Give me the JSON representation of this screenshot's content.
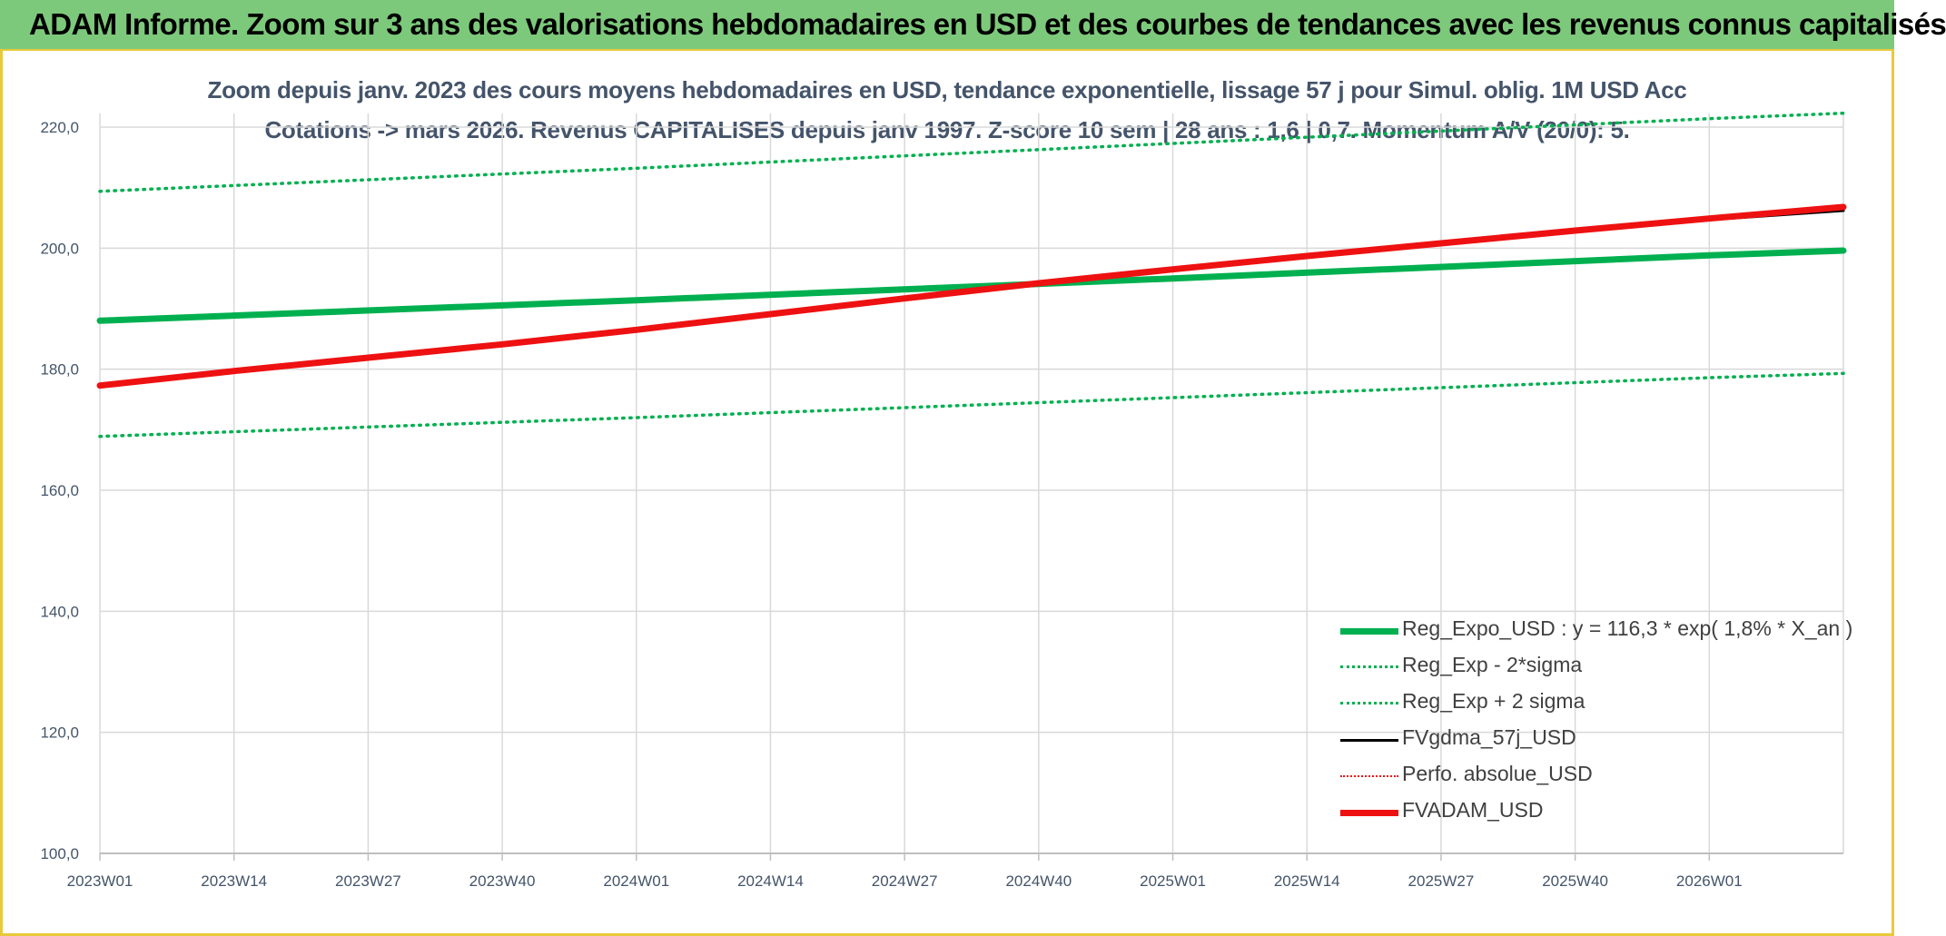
{
  "banner": {
    "title": "ADAM Informe. Zoom sur 3 ans des valorisations hebdomadaires en USD et des courbes de tendances avec les revenus connus capitalisés"
  },
  "colors": {
    "banner_bg": "#7dc97b",
    "frame_accent": "#e8c93a",
    "reg_expo": "#00b050",
    "fvgdma": "#000000",
    "fvadam": "#ee1111",
    "perfo": "#ee1111",
    "text": "#44546a"
  },
  "chart_data": {
    "type": "line",
    "title": "Zoom depuis janv. 2023 des cours moyens hebdomadaires en USD, tendance exponentielle, lissage 57 j pour Simul. oblig. 1M USD Acc",
    "subtitle": "Cotations -> mars 2026. Revenus CAPITALISES depuis janv 1997. Z-score 10 sem | 28 ans : 1,6 | 0,7. Momentum A/V (20/0): 5.",
    "xlabel": "",
    "ylabel": "",
    "ylim": [
      100,
      220
    ],
    "yticks": [
      "100,0",
      "120,0",
      "140,0",
      "160,0",
      "180,0",
      "200,0",
      "220,0"
    ],
    "grid": true,
    "legend_position": "bottom-right",
    "x_tick_labels": [
      "2023W01",
      "2023W14",
      "2023W27",
      "2023W40",
      "2024W01",
      "2024W14",
      "2024W27",
      "2024W40",
      "2025W01",
      "2025W14",
      "2025W27",
      "2025W40",
      "2026W01"
    ],
    "x_tick_weeks": [
      0,
      13,
      26,
      39,
      52,
      65,
      78,
      91,
      104,
      117,
      130,
      143,
      156
    ],
    "x_range_weeks": [
      0,
      169
    ],
    "series": [
      {
        "key": "reg",
        "name": "Reg_Expo_USD : y = 116,3 * exp( 1,8% *  X_an )",
        "style": "thick-solid",
        "color": "#00b050",
        "x": [
          0,
          52,
          104,
          156,
          169
        ],
        "values": [
          188.0,
          191.4,
          195.0,
          198.8,
          199.6
        ]
      },
      {
        "key": "lo",
        "name": "Reg_Exp - 2*sigma",
        "style": "dotted",
        "color": "#00b050",
        "x": [
          0,
          52,
          104,
          156,
          169
        ],
        "values": [
          168.9,
          172.0,
          175.3,
          178.6,
          179.3
        ]
      },
      {
        "key": "hi",
        "name": "Reg_Exp + 2 sigma",
        "style": "dotted",
        "color": "#00b050",
        "x": [
          0,
          52,
          104,
          156,
          169
        ],
        "values": [
          209.4,
          213.2,
          217.3,
          221.4,
          222.3
        ]
      },
      {
        "key": "fvgdma",
        "name": "FVgdma_57j_USD",
        "style": "solid",
        "color": "#000000",
        "x": [
          0,
          13,
          26,
          39,
          52,
          65,
          78,
          91,
          104,
          117,
          130,
          143,
          156,
          169
        ],
        "values": [
          177.2,
          179.6,
          181.8,
          184.0,
          186.4,
          189.0,
          191.6,
          194.1,
          196.4,
          198.6,
          200.7,
          202.8,
          204.7,
          206.2
        ]
      },
      {
        "key": "perfo",
        "name": "Perfo. absolue_USD",
        "style": "dotted-thin",
        "color": "#ee1111",
        "x": [],
        "values": []
      },
      {
        "key": "fvadam",
        "name": "FVADAM_USD",
        "style": "thick-solid",
        "color": "#ee1111",
        "x": [
          0,
          13,
          26,
          39,
          52,
          65,
          78,
          91,
          104,
          117,
          130,
          143,
          156,
          169
        ],
        "values": [
          177.3,
          179.7,
          181.9,
          184.1,
          186.5,
          189.1,
          191.7,
          194.2,
          196.5,
          198.7,
          200.8,
          202.9,
          204.9,
          206.8
        ]
      }
    ]
  }
}
